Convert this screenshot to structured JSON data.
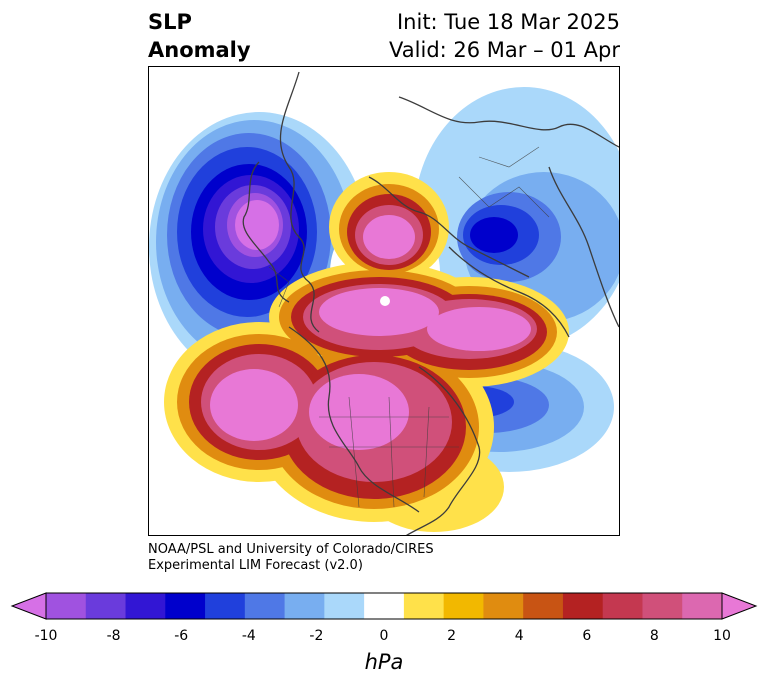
{
  "title": {
    "line1": "SLP",
    "line2": "Anomaly"
  },
  "subtitle": {
    "line1": "Init: Tue 18 Mar 2025",
    "line2": "Valid: 26 Mar – 01 Apr"
  },
  "credit": {
    "line1": "NOAA/PSL and University of Colorado/CIRES",
    "line2": "Experimental LIM Forecast (v2.0)"
  },
  "colorbar": {
    "unit": "hPa",
    "tick_labels": [
      "-10",
      "-8",
      "-6",
      "-4",
      "-2",
      "0",
      "2",
      "4",
      "6",
      "8",
      "10"
    ],
    "colors": [
      "#d670e6",
      "#a052e0",
      "#6a3bdc",
      "#3216d4",
      "#0000cc",
      "#2040dc",
      "#4f78e6",
      "#78aef0",
      "#aad8fa",
      "#ffffff",
      "#ffe14a",
      "#f2b800",
      "#e08c10",
      "#c85414",
      "#b42222",
      "#c43850",
      "#d0507a",
      "#dc68b0",
      "#e878d6"
    ]
  },
  "palette": {
    "coast": "#3c3c3c",
    "pos1": "#ffe14a",
    "pos2": "#f2b800",
    "pos3": "#e08c10",
    "pos4": "#c85414",
    "pos5": "#b42222",
    "pos6": "#c43850",
    "pos7": "#d0507a",
    "pos8": "#e878d6",
    "neg1": "#aad8fa",
    "neg2": "#78aef0",
    "neg3": "#4f78e6",
    "neg4": "#2040dc",
    "neg5": "#0000cc",
    "neg6": "#3216d4",
    "neg7": "#6a3bdc",
    "neg8": "#d670e6"
  }
}
